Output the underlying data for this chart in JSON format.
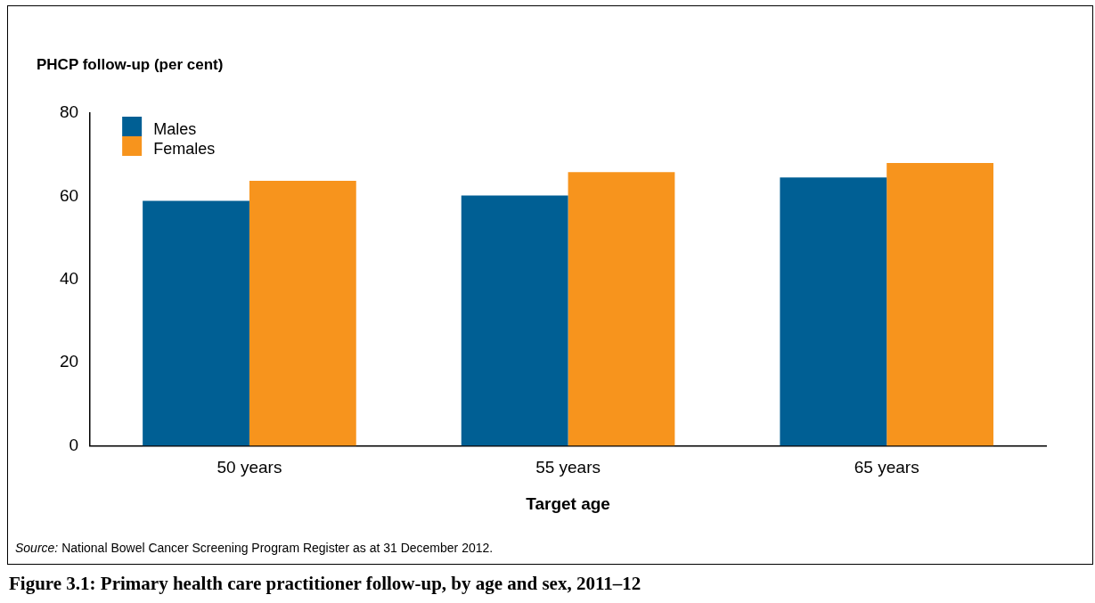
{
  "chart_data": {
    "type": "bar",
    "title": "Figure 3.1: Primary health care practitioner follow-up, by age and sex, 2011–12",
    "ylabel": "PHCP follow-up (per cent)",
    "xlabel": "Target age",
    "categories": [
      "50 years",
      "55 years",
      "65 years"
    ],
    "series": [
      {
        "name": "Males",
        "color": "#005f94",
        "values": [
          58.9,
          60.2,
          64.5
        ]
      },
      {
        "name": "Females",
        "color": "#f7941d",
        "values": [
          63.7,
          65.8,
          68.0
        ]
      }
    ],
    "ylim": [
      0,
      80
    ],
    "yticks": [
      0,
      20,
      40,
      60,
      80
    ],
    "grid": false,
    "legend": "top left",
    "annotations": [
      "Source: National Bowel Cancer Screening Program Register as at 31 December 2012."
    ]
  }
}
